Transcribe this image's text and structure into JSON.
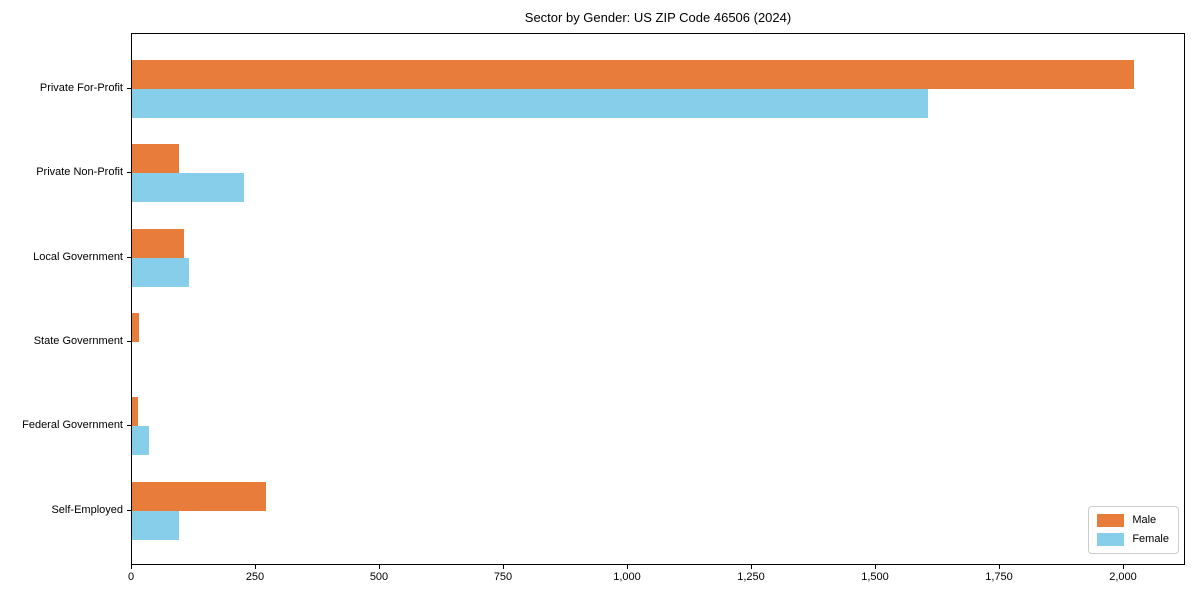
{
  "title": "Sector by Gender: US ZIP Code 46506 (2024)",
  "chart_data": {
    "type": "bar",
    "orientation": "horizontal",
    "title": "Sector by Gender: US ZIP Code 46506 (2024)",
    "categories": [
      "Private For-Profit",
      "Private Non-Profit",
      "Local Government",
      "State Government",
      "Federal Government",
      "Self-Employed"
    ],
    "series": [
      {
        "name": "Male",
        "color": "#E87D3B",
        "values": [
          2020,
          95,
          105,
          15,
          12,
          270
        ]
      },
      {
        "name": "Female",
        "color": "#87CEEB",
        "values": [
          1605,
          225,
          115,
          0,
          35,
          95
        ]
      }
    ],
    "xlabel": "",
    "ylabel": "",
    "xlim": [
      0,
      2121
    ],
    "xticks": [
      0,
      250,
      500,
      750,
      1000,
      1250,
      1500,
      1750,
      2000
    ],
    "xtick_labels": [
      "0",
      "250",
      "500",
      "750",
      "1,000",
      "1,250",
      "1,500",
      "1,750",
      "2,000"
    ],
    "grid": false,
    "legend_position": "lower right"
  },
  "colors": {
    "male": "#E87D3B",
    "female": "#87CEEB",
    "axis": "#000000",
    "legend_border": "#cccccc",
    "background": "#ffffff"
  }
}
